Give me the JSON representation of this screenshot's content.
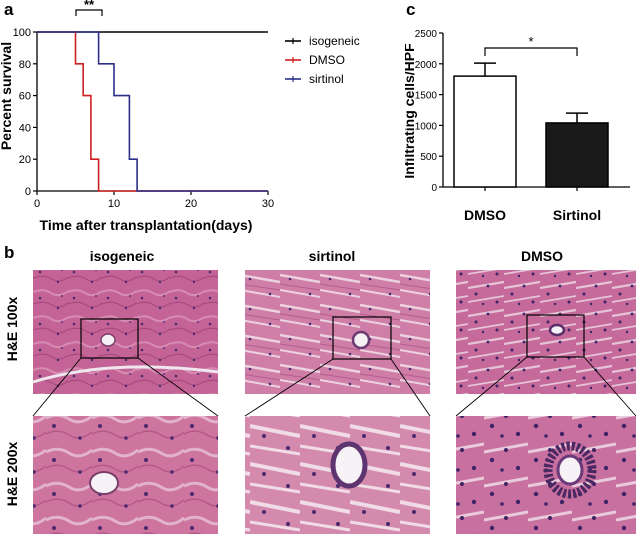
{
  "panels": {
    "a": {
      "letter": "a"
    },
    "b": {
      "letter": "b"
    },
    "c": {
      "letter": "c"
    }
  },
  "chart_data": [
    {
      "type": "line",
      "subtype": "kaplan-meier",
      "xlabel": "Time after transplantation(days)",
      "ylabel": "Percent survival",
      "xlim": [
        0,
        30
      ],
      "ylim": [
        0,
        100
      ],
      "xticks": [
        0,
        10,
        20,
        30
      ],
      "yticks": [
        0,
        20,
        40,
        60,
        80,
        100
      ],
      "significance": "**",
      "legend_position": "right",
      "series": [
        {
          "name": "isogeneic",
          "color": "#000000",
          "x": [
            0,
            30
          ],
          "y": [
            100,
            100
          ]
        },
        {
          "name": "DMSO",
          "color": "#cc1f1f",
          "x": [
            0,
            5,
            5,
            6,
            6,
            7,
            7,
            8,
            8,
            30
          ],
          "y": [
            100,
            100,
            80,
            80,
            60,
            60,
            20,
            20,
            0,
            0
          ]
        },
        {
          "name": "sirtinol",
          "color": "#2b2f8a",
          "x": [
            0,
            8,
            8,
            10,
            10,
            12,
            12,
            13,
            13,
            30
          ],
          "y": [
            100,
            100,
            80,
            80,
            60,
            60,
            20,
            20,
            0,
            0
          ]
        }
      ]
    },
    {
      "type": "bar",
      "categories": [
        "DMSO",
        "Sirtinol"
      ],
      "values": [
        1800,
        1040
      ],
      "errors": [
        210,
        160
      ],
      "bar_colors": [
        "#ffffff",
        "#1a1a1a"
      ],
      "ylabel": "Infiltrating cells/HPF",
      "ylim": [
        0,
        2500
      ],
      "yticks": [
        0,
        500,
        1000,
        1500,
        2000,
        2500
      ],
      "significance": "*"
    }
  ],
  "histology": {
    "column_titles": [
      "isogeneic",
      "sirtinol",
      "DMSO"
    ],
    "row_labels": [
      "H&E 100x",
      "H&E 200x"
    ]
  }
}
